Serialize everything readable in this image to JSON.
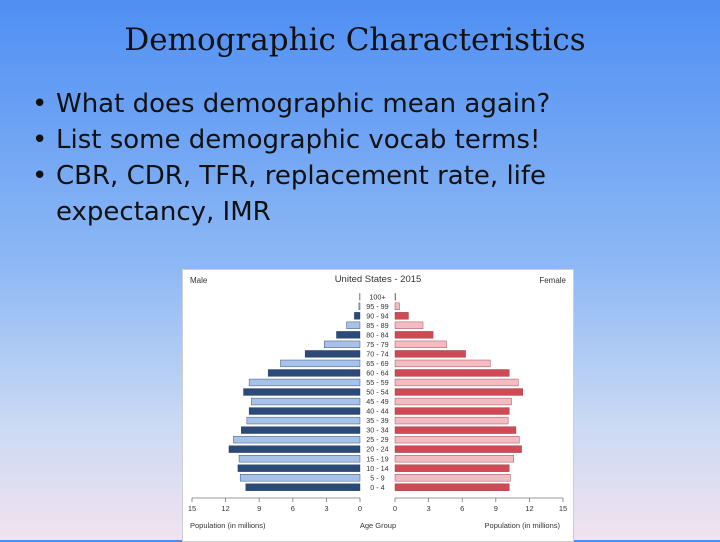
{
  "slide": {
    "title": "Demographic Characteristics",
    "bullets": [
      {
        "marker": "•",
        "text": "What does demographic mean again?"
      },
      {
        "marker": "•",
        "text": "List some demographic vocab terms!"
      },
      {
        "marker": "•",
        "text": "CBR, CDR, TFR, replacement rate, life expectancy, IMR"
      }
    ]
  },
  "chart_data": {
    "type": "bar",
    "orientation": "horizontal-population-pyramid",
    "title": "United States - 2015",
    "left_label": "Male",
    "right_label": "Female",
    "center_label": "Age Group",
    "xlabel_left": "Population (in millions)",
    "xlabel_right": "Population (in millions)",
    "xlim": [
      0,
      15
    ],
    "ticks_left": [
      "15",
      "12",
      "9",
      "6",
      "3",
      "0"
    ],
    "ticks_right": [
      "0",
      "3",
      "6",
      "9",
      "12",
      "15"
    ],
    "categories": [
      "100+",
      "95 - 99",
      "90 - 94",
      "85 - 89",
      "80 - 84",
      "75 - 79",
      "70 - 74",
      "65 - 69",
      "60 - 64",
      "55 - 59",
      "50 - 54",
      "45 - 49",
      "40 - 44",
      "35 - 39",
      "30 - 34",
      "25 - 29",
      "20 - 24",
      "15 - 19",
      "10 - 14",
      "5 - 9",
      "0 - 4"
    ],
    "series": [
      {
        "name": "Male",
        "color_dark": "#2b4a78",
        "color_light": "#a6c2e8",
        "values": [
          0.02,
          0.1,
          0.5,
          1.2,
          2.1,
          3.2,
          4.9,
          7.1,
          8.2,
          9.9,
          10.4,
          9.7,
          9.9,
          10.1,
          10.6,
          11.3,
          11.7,
          10.8,
          10.9,
          10.7,
          10.2
        ]
      },
      {
        "name": "Female",
        "color_dark": "#d04a55",
        "color_light": "#f4bcc2",
        "values": [
          0.05,
          0.4,
          1.2,
          2.5,
          3.4,
          4.6,
          6.3,
          8.5,
          10.2,
          11.0,
          11.4,
          10.4,
          10.2,
          10.1,
          10.8,
          11.1,
          11.3,
          10.6,
          10.2,
          10.3,
          10.2
        ]
      }
    ]
  }
}
